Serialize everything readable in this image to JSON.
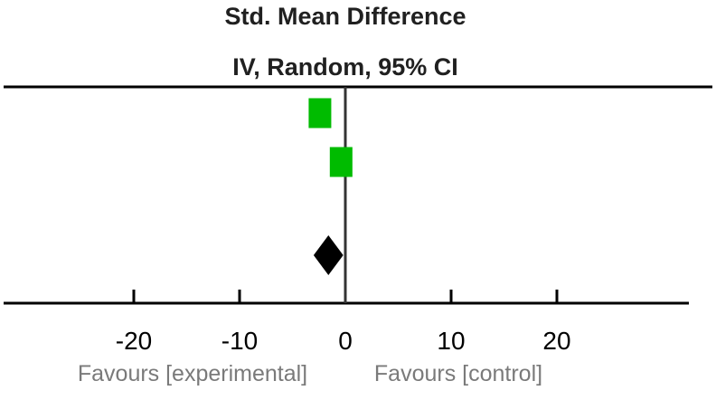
{
  "chart_data": {
    "type": "forest",
    "title": "Std. Mean Difference",
    "subtitle": "IV, Random, 95% CI",
    "xlim": [
      -32,
      32
    ],
    "ticks": [
      -20,
      -10,
      0,
      10,
      20
    ],
    "tick_labels": [
      "-20",
      "-10",
      "0",
      "10",
      "20"
    ],
    "favours_left": "Favours [experimental]",
    "favours_right": "Favours [control]",
    "studies": [
      {
        "smd": -2.4,
        "marker": "square"
      },
      {
        "smd": -0.4,
        "marker": "square"
      }
    ],
    "pooled": {
      "smd": -1.6,
      "lower": -3.0,
      "upper": -0.2,
      "marker": "diamond"
    },
    "colors": {
      "study": "#00bb00",
      "pooled": "#000000",
      "axis": "#000000",
      "zero_line": "#333333"
    }
  }
}
